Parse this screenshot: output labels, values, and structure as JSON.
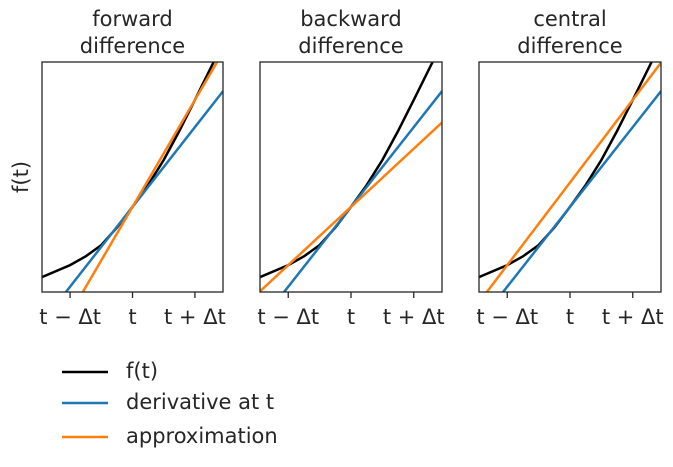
{
  "chart_data": [
    {
      "type": "line",
      "title": "forward\ndifference",
      "ylabel": "f(t)",
      "xlim": [
        -1.45,
        1.45
      ],
      "ylim": [
        0,
        10
      ],
      "xticks": [
        {
          "value": -1,
          "label": "t − Δt"
        },
        {
          "value": 0,
          "label": "t"
        },
        {
          "value": 1,
          "label": "t + Δt"
        }
      ],
      "series": [
        {
          "name": "f(t)",
          "color": "#000000",
          "x": [
            -1.45,
            -1,
            -0.75,
            -0.5,
            -0.25,
            0,
            0.25,
            0.5,
            0.75,
            1,
            1.3
          ],
          "values": [
            0.65,
            1.17,
            1.55,
            2.04,
            2.8,
            3.7,
            4.65,
            5.74,
            7.0,
            8.35,
            10.0
          ]
        },
        {
          "name": "derivative at t",
          "color": "#1f77b4",
          "x": [
            -1.45,
            1.45
          ],
          "values": [
            -1.33,
            8.73
          ]
        },
        {
          "name": "approximation",
          "color": "#ff7f0e",
          "x": [
            -1.45,
            1.45
          ],
          "values": [
            -3.04,
            10.44
          ]
        }
      ]
    },
    {
      "type": "line",
      "title": "backward\ndifference",
      "xlim": [
        -1.45,
        1.45
      ],
      "ylim": [
        0,
        10
      ],
      "xticks": [
        {
          "value": -1,
          "label": "t − Δt"
        },
        {
          "value": 0,
          "label": "t"
        },
        {
          "value": 1,
          "label": "t + Δt"
        }
      ],
      "series": [
        {
          "color": "#000000",
          "x": [
            -1.45,
            -1,
            -0.75,
            -0.5,
            -0.25,
            0,
            0.25,
            0.5,
            0.75,
            1,
            1.3
          ],
          "values": [
            0.65,
            1.17,
            1.55,
            2.04,
            2.8,
            3.7,
            4.65,
            5.74,
            7.0,
            8.35,
            10.0
          ]
        },
        {
          "color": "#1f77b4",
          "x": [
            -1.45,
            1.45
          ],
          "values": [
            -1.33,
            8.73
          ]
        },
        {
          "color": "#ff7f0e",
          "x": [
            -1.45,
            1.45
          ],
          "values": [
            0.03,
            7.37
          ]
        }
      ]
    },
    {
      "type": "line",
      "title": "central\ndifference",
      "xlim": [
        -1.45,
        1.45
      ],
      "ylim": [
        0,
        10
      ],
      "xticks": [
        {
          "value": -1,
          "label": "t − Δt"
        },
        {
          "value": 0,
          "label": "t"
        },
        {
          "value": 1,
          "label": "t + Δt"
        }
      ],
      "series": [
        {
          "color": "#000000",
          "x": [
            -1.45,
            -1,
            -0.75,
            -0.5,
            -0.25,
            0,
            0.25,
            0.5,
            0.75,
            1,
            1.3
          ],
          "values": [
            0.65,
            1.17,
            1.55,
            2.04,
            2.8,
            3.7,
            4.65,
            5.74,
            7.0,
            8.35,
            10.0
          ]
        },
        {
          "color": "#1f77b4",
          "x": [
            -1.45,
            1.45
          ],
          "values": [
            -1.33,
            8.73
          ]
        },
        {
          "color": "#ff7f0e",
          "x": [
            -1.45,
            1.45
          ],
          "values": [
            -0.45,
            9.97
          ]
        }
      ]
    }
  ]
}
